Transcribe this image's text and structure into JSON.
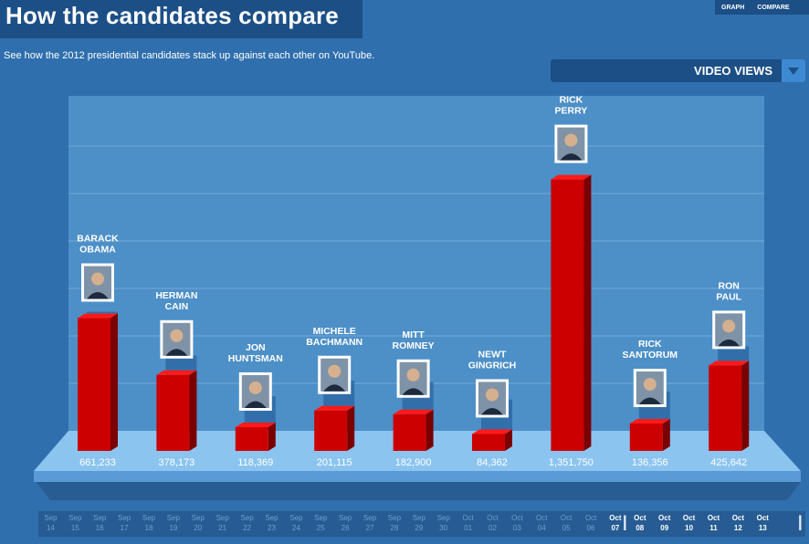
{
  "header": {
    "title": "How the candidates compare",
    "nav": [
      "GRAPH",
      "COMPARE"
    ],
    "subtitle": "See how the 2012 presidential candidates stack up against each other on YouTube."
  },
  "metric_dropdown": {
    "selected": "VIDEO VIEWS",
    "icon": "triangle-down-icon"
  },
  "colors": {
    "bar": "#cc0000",
    "bar_top": "#ff1a1a",
    "bar_side": "#7a0000",
    "platform": "#8cc4f0",
    "panel": "#4d8fc7"
  },
  "chart_data": {
    "type": "bar",
    "categories": [
      [
        "BARACK",
        "OBAMA"
      ],
      [
        "HERMAN",
        "CAIN"
      ],
      [
        "JON",
        "HUNTSMAN"
      ],
      [
        "MICHELE",
        "BACHMANN"
      ],
      [
        "MITT",
        "ROMNEY"
      ],
      [
        "NEWT",
        "GINGRICH"
      ],
      [
        "RICK",
        "PERRY"
      ],
      [
        "RICK",
        "SANTORUM"
      ],
      [
        "RON",
        "PAUL"
      ]
    ],
    "values": [
      661233,
      378173,
      118369,
      201115,
      182900,
      84362,
      1351750,
      136356,
      425642
    ],
    "value_labels": [
      "661,233",
      "378,173",
      "118,369",
      "201,115",
      "182,900",
      "84,362",
      "1,351,750",
      "136,356",
      "425,642"
    ],
    "shadow_values": [
      760000,
      480000,
      220000,
      320000,
      310000,
      200000,
      1440000,
      250000,
      540000
    ],
    "ylim": [
      0,
      1500000
    ],
    "grid": true
  },
  "timeline": {
    "ticks": [
      [
        "Sep",
        "14"
      ],
      [
        "Sep",
        "15"
      ],
      [
        "Sep",
        "16"
      ],
      [
        "Sep",
        "17"
      ],
      [
        "Sep",
        "18"
      ],
      [
        "Sep",
        "19"
      ],
      [
        "Sep",
        "20"
      ],
      [
        "Sep",
        "21"
      ],
      [
        "Sep",
        "22"
      ],
      [
        "Sep",
        "23"
      ],
      [
        "Sep",
        "24"
      ],
      [
        "Sep",
        "25"
      ],
      [
        "Sep",
        "26"
      ],
      [
        "Sep",
        "27"
      ],
      [
        "Sep",
        "28"
      ],
      [
        "Sep",
        "29"
      ],
      [
        "Sep",
        "30"
      ],
      [
        "Oct",
        "01"
      ],
      [
        "Oct",
        "02"
      ],
      [
        "Oct",
        "03"
      ],
      [
        "Oct",
        "04"
      ],
      [
        "Oct",
        "05"
      ],
      [
        "Oct",
        "06"
      ],
      [
        "Oct",
        "07"
      ],
      [
        "Oct",
        "08"
      ],
      [
        "Oct",
        "09"
      ],
      [
        "Oct",
        "10"
      ],
      [
        "Oct",
        "11"
      ],
      [
        "Oct",
        "12"
      ],
      [
        "Oct",
        "13"
      ]
    ],
    "active_from": 23
  }
}
